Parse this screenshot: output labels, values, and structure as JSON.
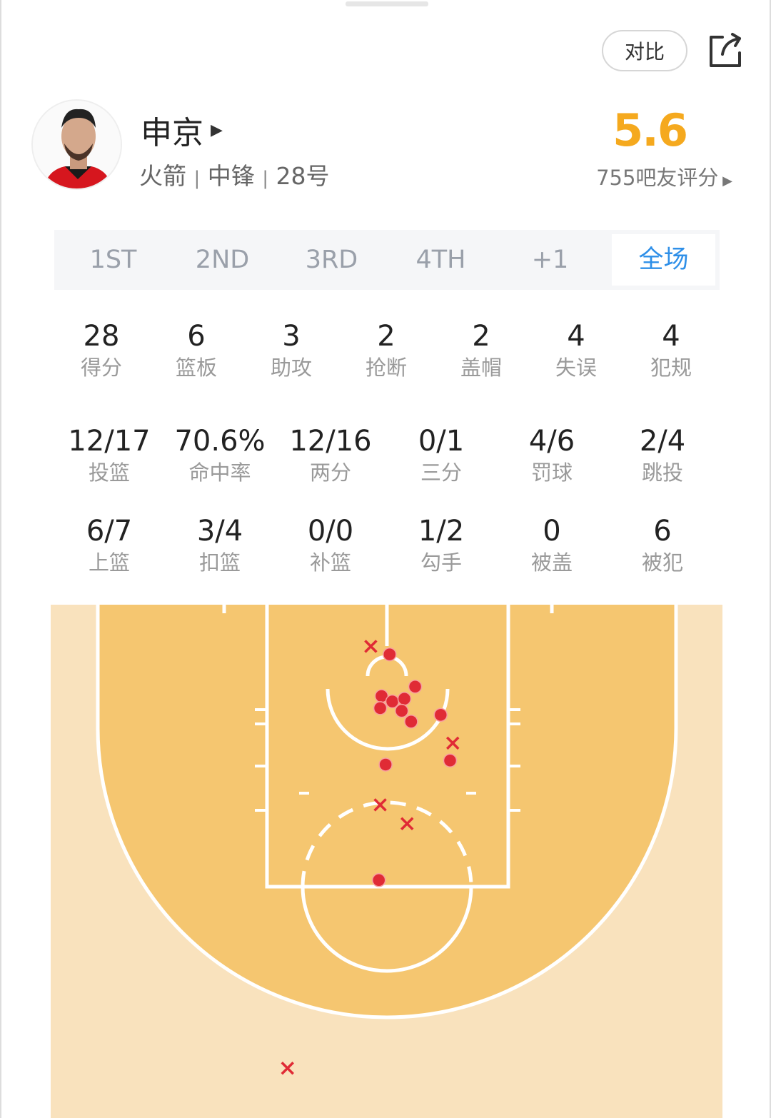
{
  "header": {
    "compare_label": "对比",
    "share_icon": "share-icon"
  },
  "player": {
    "name": "申京",
    "team": "火箭",
    "position": "中锋",
    "number": "28号",
    "rating": "5.6",
    "raters": "755吧友评分",
    "rating_color": "#f5a91e"
  },
  "tabs": [
    {
      "label": "1ST"
    },
    {
      "label": "2ND"
    },
    {
      "label": "3RD"
    },
    {
      "label": "4TH"
    },
    {
      "label": "+1"
    },
    {
      "label": "全场",
      "active": true
    }
  ],
  "stats_row1": [
    {
      "value": "28",
      "label": "得分"
    },
    {
      "value": "6",
      "label": "篮板"
    },
    {
      "value": "3",
      "label": "助攻"
    },
    {
      "value": "2",
      "label": "抢断"
    },
    {
      "value": "2",
      "label": "盖帽"
    },
    {
      "value": "4",
      "label": "失误"
    },
    {
      "value": "4",
      "label": "犯规"
    }
  ],
  "stats_row2": [
    {
      "value": "12/17",
      "label": "投篮"
    },
    {
      "value": "70.6%",
      "label": "命中率"
    },
    {
      "value": "12/16",
      "label": "两分"
    },
    {
      "value": "0/1",
      "label": "三分"
    },
    {
      "value": "4/6",
      "label": "罚球"
    },
    {
      "value": "2/4",
      "label": "跳投"
    }
  ],
  "stats_row3": [
    {
      "value": "6/7",
      "label": "上篮"
    },
    {
      "value": "3/4",
      "label": "扣篮"
    },
    {
      "value": "0/0",
      "label": "补篮"
    },
    {
      "value": "1/2",
      "label": "勾手"
    },
    {
      "value": "0",
      "label": "被盖"
    },
    {
      "value": "6",
      "label": "被犯"
    }
  ],
  "shot_chart": {
    "units": "feet (x from center, y from baseline)",
    "made_color": "#e02b35",
    "made": [
      [
        0.2,
        3.7
      ],
      [
        2.1,
        6.1
      ],
      [
        -0.4,
        6.8
      ],
      [
        0.4,
        7.2
      ],
      [
        1.3,
        7.0
      ],
      [
        -0.5,
        7.7
      ],
      [
        1.1,
        7.9
      ],
      [
        1.8,
        8.7
      ],
      [
        4.0,
        8.2
      ],
      [
        -0.1,
        11.9
      ],
      [
        4.7,
        11.6
      ],
      [
        -0.6,
        20.5
      ]
    ],
    "missed": [
      [
        -1.2,
        3.1
      ],
      [
        4.9,
        10.3
      ],
      [
        -0.5,
        14.9
      ],
      [
        1.5,
        16.3
      ],
      [
        -7.4,
        34.5
      ]
    ]
  }
}
